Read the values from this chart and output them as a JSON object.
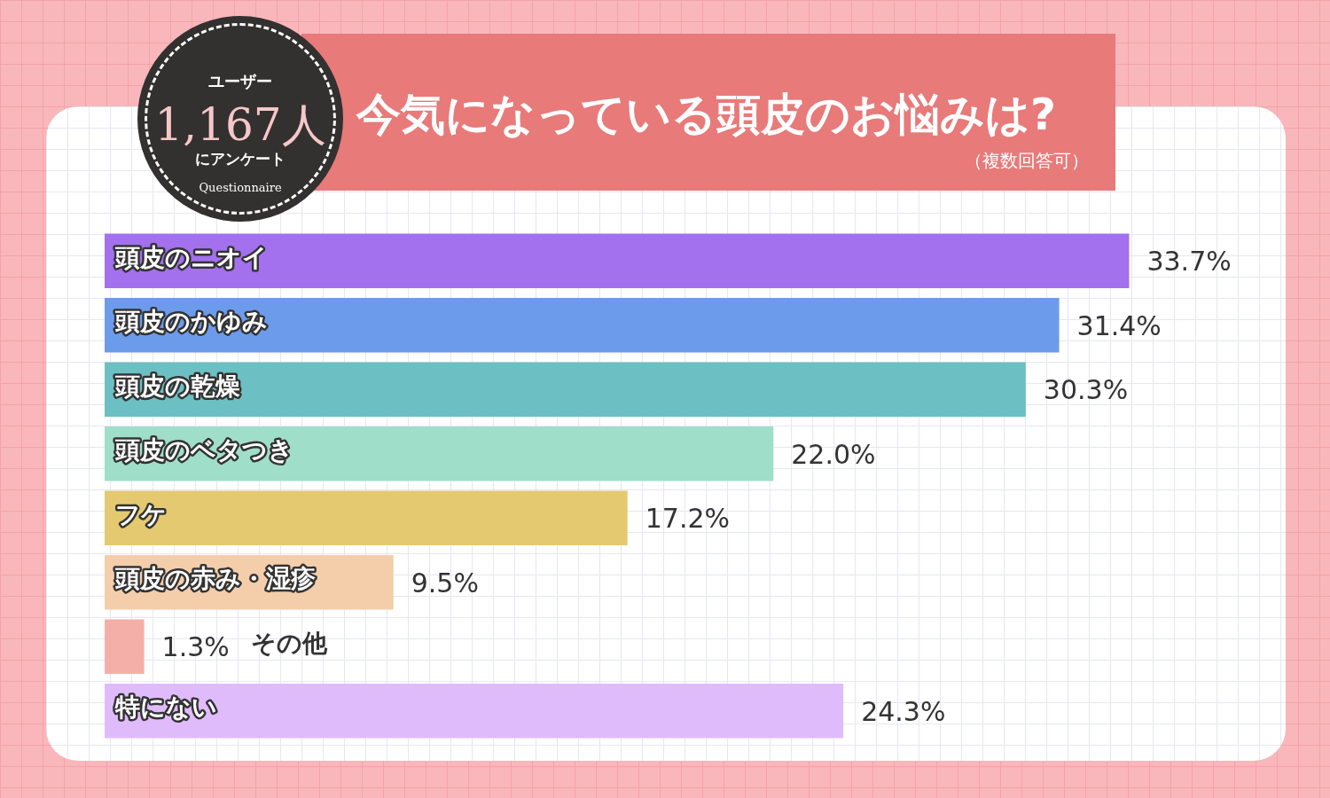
{
  "chart_data": {
    "type": "bar",
    "orientation": "horizontal",
    "title": "今気になっている頭皮のお悩みは?",
    "subtitle": "（複数回答可）",
    "annotations": [
      "ユーザー",
      "1,167人",
      "にアンケート",
      "Questionnaire"
    ],
    "categories": [
      "頭皮のニオイ",
      "頭皮のかゆみ",
      "頭皮の乾燥",
      "頭皮のベタつき",
      "フケ",
      "頭皮の赤み・湿疹",
      "その他",
      "特にない"
    ],
    "values": [
      33.7,
      31.4,
      30.3,
      22.0,
      17.2,
      9.5,
      1.3,
      24.3
    ],
    "colors": [
      "#a370ee",
      "#6d9bec",
      "#6cc0c4",
      "#9fdec8",
      "#e4c970",
      "#f4cdaa",
      "#f4b0a8",
      "#e0bbfc"
    ],
    "value_labels": [
      "33.7%",
      "31.4%",
      "30.3%",
      "22.0%",
      "17.2%",
      "9.5%",
      "1.3%",
      "24.3%"
    ],
    "legend": false
  }
}
